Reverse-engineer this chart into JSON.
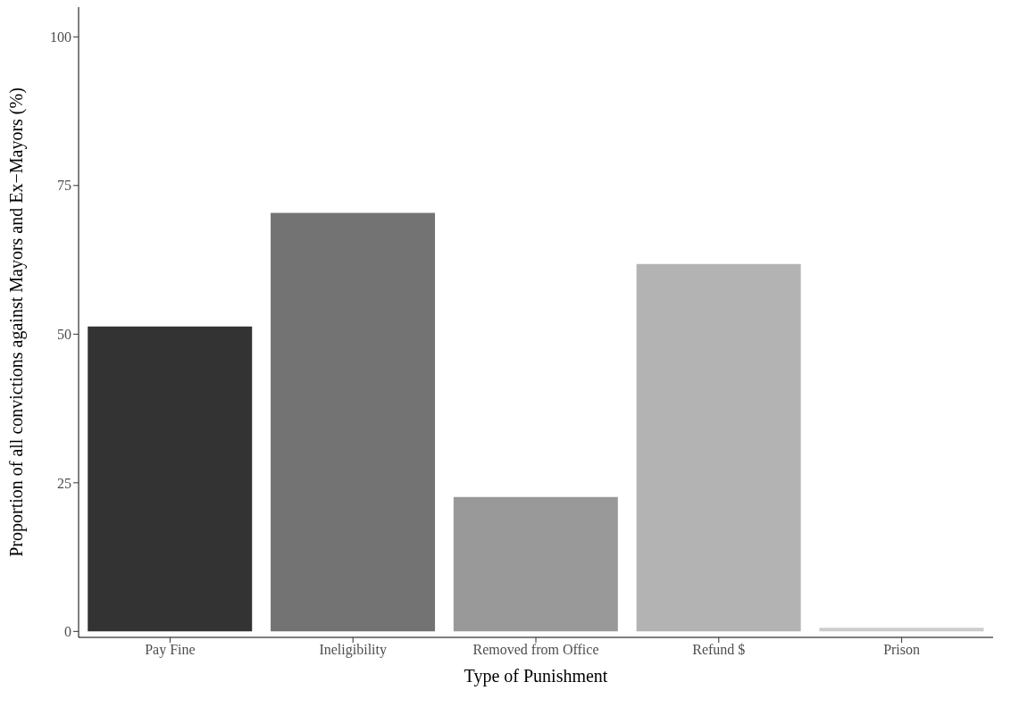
{
  "chart_data": {
    "type": "bar",
    "xlabel": "Type of Punishment",
    "ylabel": "Proportion of all convictions against Mayors and Ex−Mayors (%)",
    "categories": [
      "Pay Fine",
      "Ineligibility",
      "Removed from Office",
      "Refund $",
      "Prison"
    ],
    "values": [
      51.3,
      70.4,
      22.6,
      61.8,
      0.6
    ],
    "colors": [
      "#333333",
      "#737373",
      "#999999",
      "#b3b3b3",
      "#cccccc"
    ],
    "ylim": [
      -1,
      105
    ],
    "yticks": [
      0,
      25,
      50,
      75,
      100
    ],
    "grid": false
  }
}
